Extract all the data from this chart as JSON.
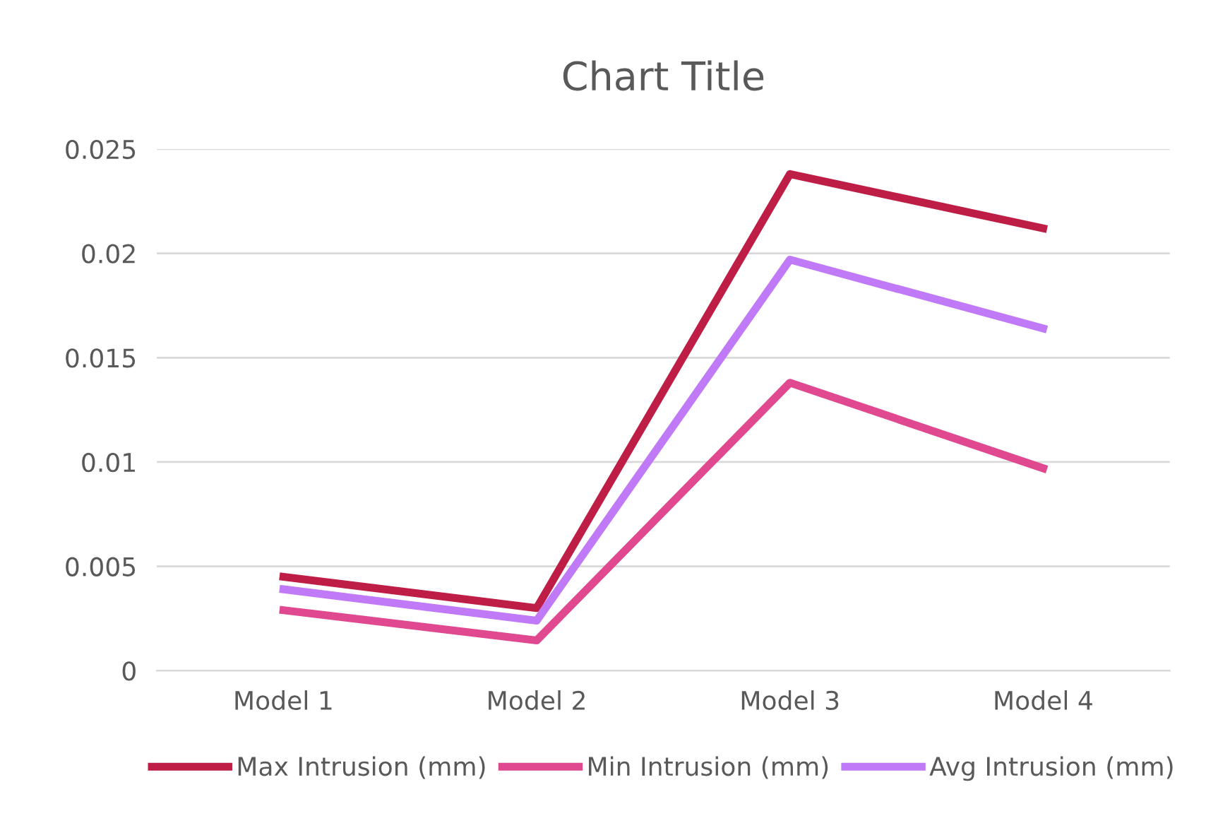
{
  "chart_data": {
    "type": "line",
    "title": "Chart Title",
    "categories": [
      "Model 1",
      "Model 2",
      "Model 3",
      "Model 4"
    ],
    "series": [
      {
        "name": "Max Intrusion (mm)",
        "color": "#be1e45",
        "values": [
          0.0045,
          0.003,
          0.0238,
          0.0212
        ]
      },
      {
        "name": "Min Intrusion (mm)",
        "color": "#e0488f",
        "values": [
          0.0029,
          0.00145,
          0.0138,
          0.0097
        ]
      },
      {
        "name": "Avg Intrusion (mm)",
        "color": "#c17af7",
        "values": [
          0.0039,
          0.0024,
          0.0197,
          0.0164
        ]
      }
    ],
    "ylim": [
      0,
      0.025
    ],
    "yticks": [
      0,
      0.005,
      0.01,
      0.015,
      0.02,
      0.025
    ],
    "grid": "y",
    "legend": "bottom",
    "marker": "none",
    "line_style": "solid"
  }
}
